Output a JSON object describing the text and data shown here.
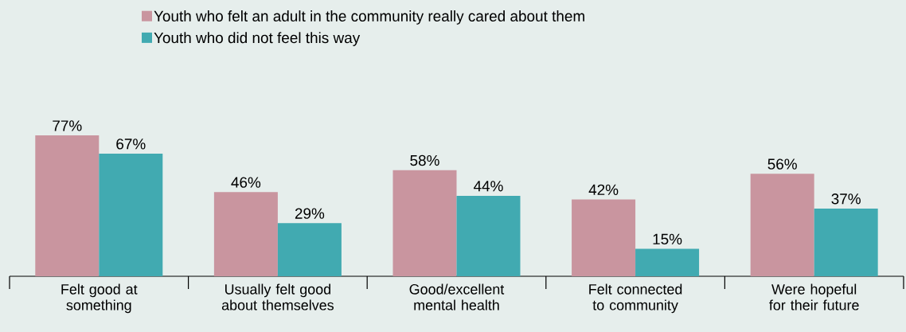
{
  "chart_data": {
    "type": "bar",
    "categories": [
      "Felt good at something",
      "Usually felt good about themselves",
      "Good/excellent mental health",
      "Felt connected to community",
      "Were hopeful for their future"
    ],
    "series": [
      {
        "name": "Youth who felt an adult in the community really cared about them",
        "color": "#c9959f",
        "values": [
          77,
          46,
          58,
          42,
          56
        ],
        "value_labels": [
          "77%",
          "46%",
          "58%",
          "42%",
          "56%"
        ]
      },
      {
        "name": "Youth who did not feel this way",
        "color": "#41aab1",
        "values": [
          67,
          29,
          44,
          15,
          37
        ],
        "value_labels": [
          "67%",
          "29%",
          "44%",
          "15%",
          "37%"
        ]
      }
    ],
    "legend": "top"
  }
}
